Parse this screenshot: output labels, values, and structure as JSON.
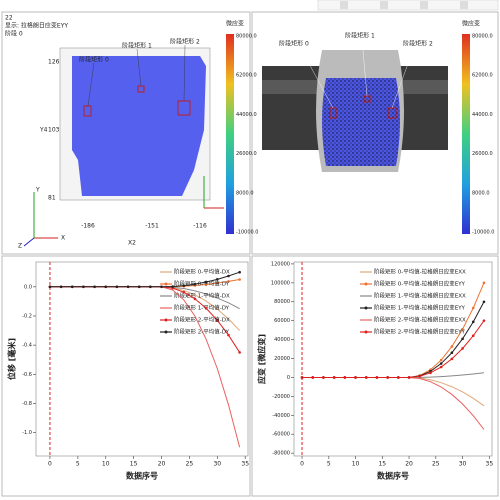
{
  "contour_panel": {
    "frame_number": "22",
    "display_label": "显示: 拉格朗日应变EYY",
    "stage_label": "阶段 0",
    "rect_labels": [
      "阶段矩形 0",
      "阶段矩形 1",
      "阶段矩形 2"
    ],
    "y_axis_title": "Y4",
    "x_axis_title": "X2",
    "yticks": [
      "126",
      "103",
      "81"
    ],
    "xticks": [
      "-186",
      "-151",
      "-116"
    ],
    "triad": [
      "Z",
      "X",
      "Y"
    ],
    "colorbar_title": "微应变",
    "colorbar_ticks": [
      "80000.0",
      "62000.0",
      "44000.0",
      "26000.0",
      "8000.0",
      "-10000.0"
    ]
  },
  "image_panel": {
    "rect_labels": [
      "阶段矩形 0",
      "阶段矩形 1",
      "阶段矩形 2"
    ],
    "colorbar_title": "微应变",
    "colorbar_ticks": [
      "80000.0",
      "62000.0",
      "44000.0",
      "26000.0",
      "8000.0",
      "-10000.0"
    ]
  },
  "chart_data": [
    {
      "type": "line",
      "y_label": "位移 [毫米]",
      "x_label": "数据序号",
      "x": [
        0,
        2,
        4,
        6,
        8,
        10,
        12,
        14,
        16,
        18,
        20,
        22,
        24,
        26,
        28,
        30,
        32,
        34
      ],
      "xlim": [
        -2.5,
        35.5
      ],
      "xticks": [
        0,
        5,
        10,
        15,
        20,
        25,
        30,
        35
      ],
      "ylim": [
        -1.16,
        0.17
      ],
      "yticks": [
        {
          "value": 0,
          "label": "0.0"
        },
        {
          "value": -0.2,
          "label": "-0.2"
        },
        {
          "value": -0.4,
          "label": "-0.4"
        },
        {
          "value": -0.6,
          "label": "-0.6"
        },
        {
          "value": -0.8,
          "label": "-0.8"
        },
        {
          "value": -1,
          "label": "-1.0"
        }
      ],
      "series": [
        {
          "name": "阶段矩形 0-平均值-DX",
          "color": "#e0a878",
          "marker": false,
          "values": [
            0,
            0,
            0,
            0,
            0,
            0,
            0,
            0,
            0,
            0,
            0,
            -0.006,
            -0.025,
            -0.055,
            -0.098,
            -0.153,
            -0.22,
            -0.3
          ]
        },
        {
          "name": "阶段矩形 0-平均值-DY",
          "color": "#f07030",
          "marker": true,
          "values": [
            0,
            0,
            0,
            0,
            0,
            0,
            0,
            0,
            0,
            0,
            0,
            0.001,
            0.004,
            0.009,
            0.016,
            0.026,
            0.037,
            0.05
          ]
        },
        {
          "name": "阶段矩形 1-平均值-DX",
          "color": "#888888",
          "marker": false,
          "values": [
            0,
            0,
            0,
            0,
            0,
            0,
            0,
            0,
            0,
            0,
            0,
            -0.003,
            -0.012,
            -0.028,
            -0.049,
            -0.077,
            -0.11,
            -0.15
          ]
        },
        {
          "name": "阶段矩形 1-平均值-DY",
          "color": "#e86060",
          "marker": false,
          "values": [
            0,
            0,
            0,
            0,
            0,
            0,
            0,
            0,
            0,
            0,
            0,
            -0.022,
            -0.09,
            -0.202,
            -0.36,
            -0.561,
            -0.809,
            -1.1
          ]
        },
        {
          "name": "阶段矩形 2-平均值-DX",
          "color": "#e02020",
          "marker": true,
          "values": [
            0,
            0,
            0,
            0,
            0,
            0,
            0,
            0,
            0,
            0,
            0,
            -0.009,
            -0.037,
            -0.083,
            -0.147,
            -0.23,
            -0.331,
            -0.45
          ]
        },
        {
          "name": "阶段矩形 2-平均值-DY",
          "color": "#222222",
          "marker": true,
          "values": [
            0,
            0,
            0,
            0,
            0,
            0,
            0,
            0,
            0,
            0,
            0,
            0.002,
            0.008,
            0.018,
            0.033,
            0.051,
            0.074,
            0.1
          ]
        }
      ]
    },
    {
      "type": "line",
      "y_label": "应变 [微应变]",
      "x_label": "数据序号",
      "x": [
        0,
        2,
        4,
        6,
        8,
        10,
        12,
        14,
        16,
        18,
        20,
        22,
        24,
        26,
        28,
        30,
        32,
        34
      ],
      "xlim": [
        -1.5,
        35.5
      ],
      "xticks": [
        0,
        5,
        10,
        15,
        20,
        25,
        30,
        35
      ],
      "ylim": [
        -83000,
        122000
      ],
      "yticks": [
        120000,
        100000,
        80000,
        60000,
        40000,
        20000,
        0,
        -20000,
        -40000,
        -60000,
        -80000
      ],
      "series": [
        {
          "name": "阶段矩形 0-平均值-拉格朗日应变EXX",
          "color": "#e0a878",
          "marker": false,
          "values": [
            0,
            0,
            0,
            0,
            0,
            0,
            0,
            0,
            0,
            0,
            0,
            -612,
            -2449,
            -5510,
            -9796,
            -15306,
            -22041,
            -30000
          ]
        },
        {
          "name": "阶段矩形 0-平均值-拉格朗日应变EYY",
          "color": "#f07030",
          "marker": true,
          "values": [
            0,
            0,
            0,
            0,
            0,
            0,
            0,
            0,
            0,
            0,
            0,
            2041,
            8163,
            18367,
            32653,
            51020,
            73469,
            100000
          ]
        },
        {
          "name": "阶段矩形 1-平均值-拉格朗日应变EXX",
          "color": "#888888",
          "marker": false,
          "values": [
            0,
            0,
            0,
            0,
            0,
            0,
            0,
            0,
            0,
            0,
            0,
            102,
            408,
            918,
            1633,
            2551,
            3673,
            5000
          ]
        },
        {
          "name": "阶段矩形 1-平均值-拉格朗日应变EYY",
          "color": "#222222",
          "marker": true,
          "values": [
            0,
            0,
            0,
            0,
            0,
            0,
            0,
            0,
            0,
            0,
            0,
            1633,
            6531,
            14694,
            26122,
            40816,
            58776,
            80000
          ]
        },
        {
          "name": "阶段矩形 2-平均值-拉格朗日应变EXX",
          "color": "#e86060",
          "marker": false,
          "values": [
            0,
            0,
            0,
            0,
            0,
            0,
            0,
            0,
            0,
            0,
            0,
            -1122,
            -4490,
            -10102,
            -17959,
            -28061,
            -40408,
            -55000
          ]
        },
        {
          "name": "阶段矩形 2-平均值-拉格朗日应变EYY",
          "color": "#e02020",
          "marker": true,
          "values": [
            0,
            0,
            0,
            0,
            0,
            0,
            0,
            0,
            0,
            0,
            0,
            1224,
            4898,
            11020,
            19592,
            30612,
            44082,
            60000
          ]
        }
      ]
    }
  ]
}
